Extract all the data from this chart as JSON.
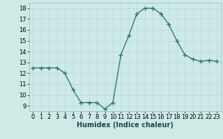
{
  "x": [
    0,
    1,
    2,
    3,
    4,
    5,
    6,
    7,
    8,
    9,
    10,
    11,
    12,
    13,
    14,
    15,
    16,
    17,
    18,
    19,
    20,
    21,
    22,
    23
  ],
  "y": [
    12.5,
    12.5,
    12.5,
    12.5,
    12.0,
    10.5,
    9.3,
    9.3,
    9.3,
    8.7,
    9.3,
    13.7,
    15.5,
    17.5,
    18.0,
    18.0,
    17.5,
    16.5,
    15.0,
    13.7,
    13.3,
    13.1,
    13.2,
    13.1
  ],
  "xlabel": "Humidex (Indice chaleur)",
  "ylim": [
    8.5,
    18.5
  ],
  "xlim": [
    -0.5,
    23.5
  ],
  "yticks": [
    9,
    10,
    11,
    12,
    13,
    14,
    15,
    16,
    17,
    18
  ],
  "xticks": [
    0,
    1,
    2,
    3,
    4,
    5,
    6,
    7,
    8,
    9,
    10,
    11,
    12,
    13,
    14,
    15,
    16,
    17,
    18,
    19,
    20,
    21,
    22,
    23
  ],
  "line_color": "#2d7a6e",
  "marker": "+",
  "marker_size": 4,
  "bg_color": "#ceeae7",
  "grid_color": "#b8d8d5",
  "xlabel_fontsize": 7,
  "tick_fontsize": 6
}
